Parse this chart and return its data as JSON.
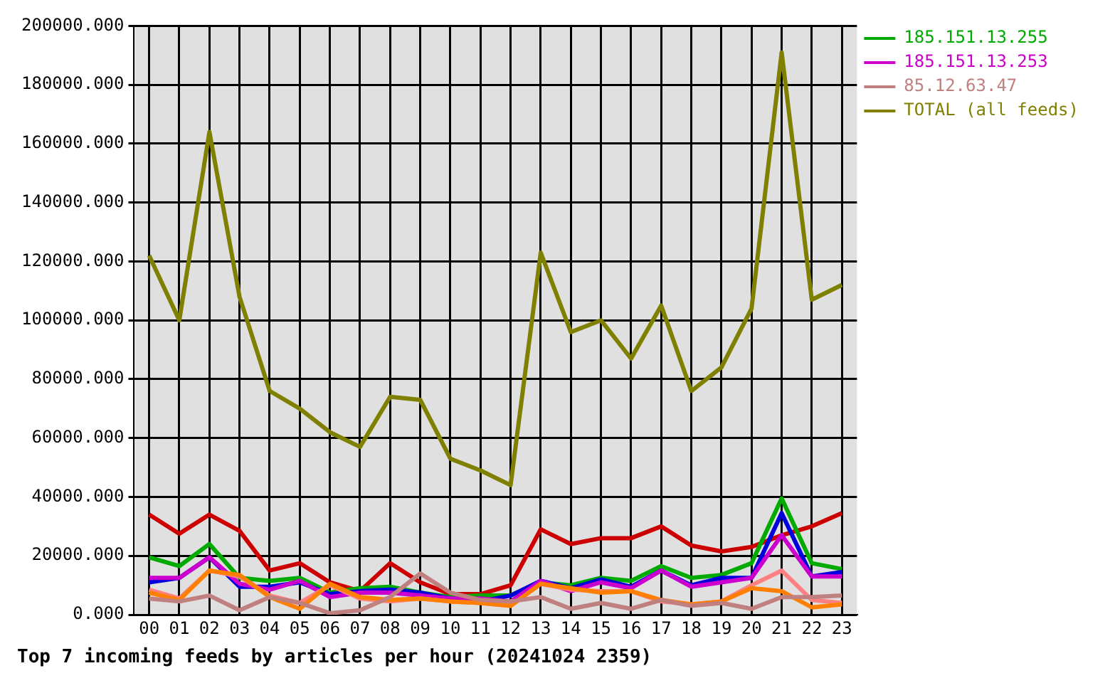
{
  "chart_data": {
    "type": "line",
    "title": "Top 7 incoming feeds by articles per hour (20241024 2359)",
    "categories": [
      "00",
      "01",
      "02",
      "03",
      "04",
      "05",
      "06",
      "07",
      "08",
      "09",
      "10",
      "11",
      "12",
      "13",
      "14",
      "15",
      "16",
      "17",
      "18",
      "19",
      "20",
      "21",
      "22",
      "23"
    ],
    "ylim": [
      0,
      200000
    ],
    "yticks": [
      {
        "value": 0,
        "label": "0.000"
      },
      {
        "value": 20000,
        "label": "20000.000"
      },
      {
        "value": 40000,
        "label": "40000.000"
      },
      {
        "value": 60000,
        "label": "60000.000"
      },
      {
        "value": 80000,
        "label": "80000.000"
      },
      {
        "value": 100000,
        "label": "100000.000"
      },
      {
        "value": 120000,
        "label": "120000.000"
      },
      {
        "value": 140000,
        "label": "140000.000"
      },
      {
        "value": 160000,
        "label": "160000.000"
      },
      {
        "value": 180000,
        "label": "180000.000"
      },
      {
        "value": 200000,
        "label": "200000.000"
      }
    ],
    "grid": true,
    "legend": "right",
    "line_style": "solid",
    "series": [
      {
        "color": "#cc0000",
        "values": [
          34000,
          27500,
          34000,
          28500,
          15000,
          17500,
          11000,
          8000,
          17500,
          11000,
          7000,
          7000,
          10000,
          29000,
          24000,
          26000,
          26000,
          30000,
          23500,
          21500,
          23000,
          27000,
          30000,
          34500
        ]
      },
      {
        "name": "185.151.13.255",
        "color": "#00aa00",
        "values": [
          19500,
          16500,
          24000,
          12500,
          11500,
          12500,
          7500,
          9000,
          9500,
          7500,
          6000,
          6500,
          6500,
          11000,
          10000,
          12500,
          11500,
          16500,
          12500,
          13500,
          17500,
          39500,
          17500,
          15500
        ]
      },
      {
        "color": "#0000dd",
        "values": [
          11000,
          12500,
          19500,
          9500,
          9500,
          11000,
          7000,
          8000,
          8500,
          7500,
          5500,
          4500,
          6500,
          11500,
          9000,
          12000,
          9500,
          15000,
          10000,
          12500,
          12500,
          34500,
          13000,
          14500
        ]
      },
      {
        "name": "185.151.13.253",
        "color": "#cc00cc",
        "values": [
          12500,
          12500,
          19500,
          10500,
          8500,
          11500,
          6000,
          7500,
          7500,
          6500,
          5500,
          5500,
          4500,
          11500,
          8000,
          11000,
          9000,
          15000,
          9500,
          11000,
          12500,
          27000,
          13000,
          13000
        ]
      },
      {
        "color": "#ff8080",
        "values": [
          8500,
          5500,
          15000,
          13000,
          6500,
          4000,
          10000,
          5500,
          4500,
          5500,
          4500,
          4000,
          3000,
          10500,
          8500,
          8000,
          8000,
          4500,
          3500,
          4500,
          10000,
          15000,
          5000,
          4000
        ]
      },
      {
        "color": "#ff8000",
        "values": [
          7500,
          5000,
          15000,
          13500,
          6000,
          2000,
          10500,
          6000,
          5000,
          5500,
          4500,
          4000,
          3000,
          10500,
          9000,
          7500,
          8000,
          5000,
          3500,
          4500,
          9000,
          8000,
          2500,
          3500
        ]
      },
      {
        "name": "85.12.63.47",
        "color": "#c08080",
        "values": [
          5500,
          4500,
          6500,
          1500,
          6000,
          4000,
          500,
          1500,
          6000,
          14000,
          7500,
          5000,
          4500,
          6000,
          2000,
          4000,
          2000,
          5000,
          3000,
          4000,
          2000,
          6000,
          6000,
          6500
        ]
      },
      {
        "name": "TOTAL (all feeds)",
        "color": "#808000",
        "values": [
          122000,
          100000,
          164000,
          108000,
          76000,
          70000,
          62000,
          57000,
          74000,
          73000,
          53000,
          49000,
          44000,
          123000,
          96000,
          100000,
          87000,
          105000,
          76000,
          84000,
          104000,
          191000,
          107000,
          112000
        ]
      }
    ]
  }
}
